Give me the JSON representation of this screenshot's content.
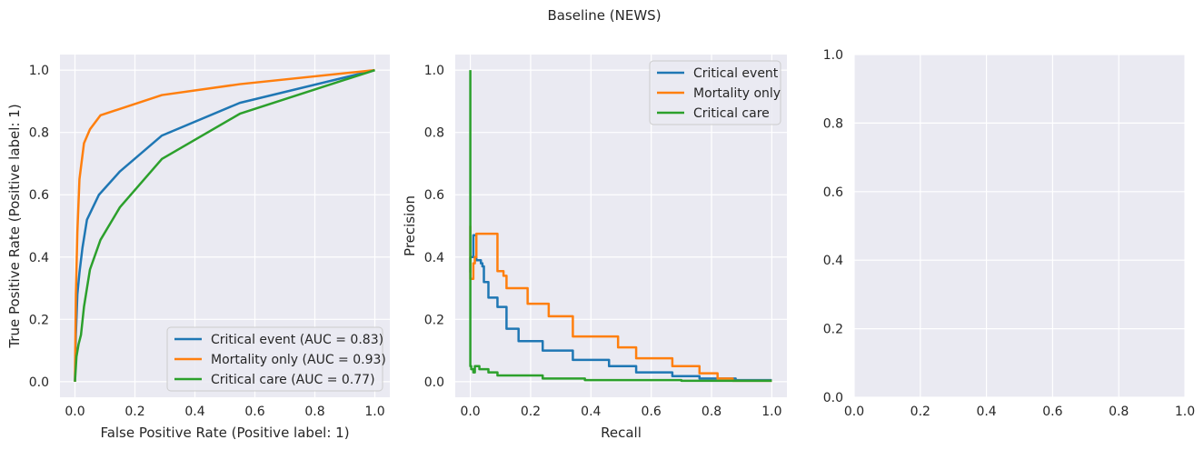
{
  "figure": {
    "title": "Baseline (NEWS)"
  },
  "colors": {
    "blue": "#1f77b4",
    "orange": "#ff7f0e",
    "green": "#2ca02c",
    "plot_bg": "#eaeaf2",
    "grid": "#ffffff"
  },
  "chart_data": [
    {
      "type": "line",
      "title": "",
      "xlabel": "False Positive Rate (Positive label: 1)",
      "ylabel": "True Positive Rate (Positive label: 1)",
      "xlim": [
        -0.05,
        1.05
      ],
      "ylim": [
        -0.05,
        1.05
      ],
      "xticks": [
        "0.0",
        "0.2",
        "0.4",
        "0.6",
        "0.8",
        "1.0"
      ],
      "yticks": [
        "0.0",
        "0.2",
        "0.4",
        "0.6",
        "0.8",
        "1.0"
      ],
      "grid": true,
      "legend": "lower-right",
      "series": [
        {
          "name": "Critical event (AUC = 0.83)",
          "color": "#1f77b4",
          "x": [
            0,
            0.003,
            0.008,
            0.015,
            0.025,
            0.04,
            0.08,
            0.15,
            0.29,
            0.55,
            1.0
          ],
          "y": [
            0,
            0.15,
            0.28,
            0.35,
            0.43,
            0.52,
            0.6,
            0.675,
            0.79,
            0.895,
            1.0
          ]
        },
        {
          "name": "Mortality only (AUC = 0.93)",
          "color": "#ff7f0e",
          "x": [
            0,
            0.003,
            0.008,
            0.015,
            0.03,
            0.05,
            0.085,
            0.29,
            0.55,
            1.0
          ],
          "y": [
            0,
            0.28,
            0.48,
            0.65,
            0.765,
            0.81,
            0.855,
            0.92,
            0.955,
            1.0
          ]
        },
        {
          "name": "Critical care (AUC = 0.77)",
          "color": "#2ca02c",
          "x": [
            0,
            0.005,
            0.012,
            0.02,
            0.03,
            0.05,
            0.085,
            0.15,
            0.29,
            0.55,
            1.0
          ],
          "y": [
            0,
            0.08,
            0.12,
            0.15,
            0.24,
            0.36,
            0.455,
            0.56,
            0.715,
            0.86,
            1.0
          ]
        }
      ]
    },
    {
      "type": "line",
      "title": "",
      "xlabel": "Recall",
      "ylabel": "Precision",
      "xlim": [
        -0.05,
        1.05
      ],
      "ylim": [
        -0.05,
        1.05
      ],
      "xticks": [
        "0.0",
        "0.2",
        "0.4",
        "0.6",
        "0.8",
        "1.0"
      ],
      "yticks": [
        "0.0",
        "0.2",
        "0.4",
        "0.6",
        "0.8",
        "1.0"
      ],
      "grid": true,
      "legend": "top-right",
      "series": [
        {
          "name": "Critical event",
          "color": "#1f77b4",
          "step": true,
          "x": [
            1.0,
            0.88,
            0.76,
            0.67,
            0.55,
            0.46,
            0.34,
            0.24,
            0.16,
            0.12,
            0.09,
            0.06,
            0.045,
            0.04,
            0.035,
            0.02,
            0.015,
            0.01,
            0.0
          ],
          "y": [
            0.005,
            0.01,
            0.018,
            0.03,
            0.05,
            0.07,
            0.1,
            0.13,
            0.17,
            0.24,
            0.27,
            0.32,
            0.37,
            0.38,
            0.39,
            0.47,
            0.47,
            0.4,
            0.35
          ]
        },
        {
          "name": "Mortality only",
          "color": "#ff7f0e",
          "step": true,
          "x": [
            1.0,
            0.87,
            0.82,
            0.76,
            0.67,
            0.55,
            0.49,
            0.34,
            0.26,
            0.19,
            0.12,
            0.11,
            0.09,
            0.025,
            0.02,
            0.015,
            0.01,
            0.0
          ],
          "y": [
            0.003,
            0.01,
            0.027,
            0.05,
            0.075,
            0.11,
            0.145,
            0.21,
            0.25,
            0.3,
            0.34,
            0.355,
            0.475,
            0.475,
            0.4,
            0.38,
            0.33,
            0.5
          ]
        },
        {
          "name": "Critical care",
          "color": "#2ca02c",
          "step": true,
          "x": [
            1.0,
            0.7,
            0.38,
            0.24,
            0.09,
            0.06,
            0.03,
            0.02,
            0.015,
            0.01,
            0.005,
            0.003,
            0.0
          ],
          "y": [
            0.003,
            0.005,
            0.01,
            0.02,
            0.03,
            0.04,
            0.05,
            0.05,
            0.03,
            0.04,
            0.04,
            0.05,
            1.0
          ]
        }
      ]
    },
    {
      "type": "line",
      "title": "",
      "xlabel": "",
      "ylabel": "",
      "xlim": [
        0,
        1
      ],
      "ylim": [
        0,
        1
      ],
      "xticks": [
        "0.0",
        "0.2",
        "0.4",
        "0.6",
        "0.8",
        "1.0"
      ],
      "yticks": [
        "0.0",
        "0.2",
        "0.4",
        "0.6",
        "0.8",
        "1.0"
      ],
      "grid": true,
      "series": []
    }
  ]
}
